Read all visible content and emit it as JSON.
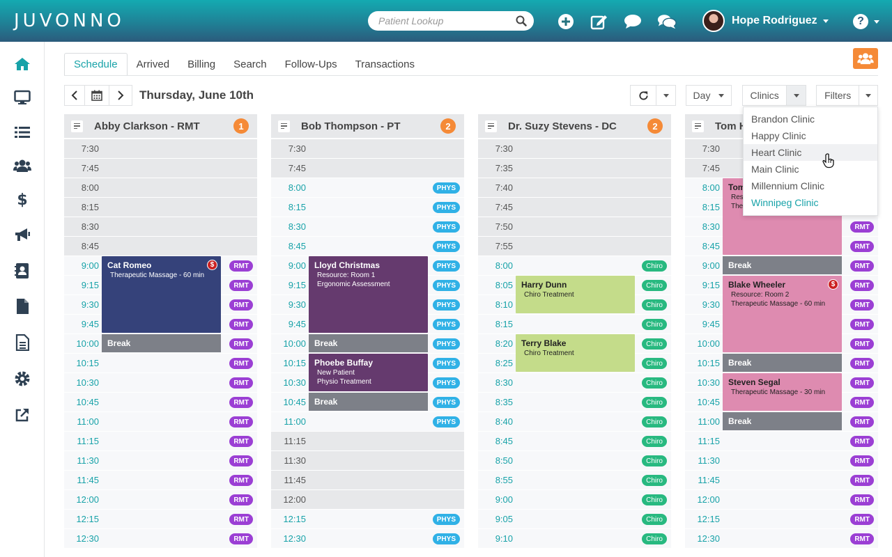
{
  "app": {
    "logo_text": "JUVONNO"
  },
  "header": {
    "search_placeholder": "Patient Lookup",
    "user_name": "Hope Rodriguez",
    "icons": [
      "plus-circle-icon",
      "edit-icon",
      "comment-icon",
      "comments-icon",
      "help-icon"
    ]
  },
  "sidebar": {
    "items": [
      {
        "icon": "home-icon",
        "active": true
      },
      {
        "icon": "monitor-icon"
      },
      {
        "icon": "list-icon"
      },
      {
        "icon": "users-icon"
      },
      {
        "icon": "dollar-icon"
      },
      {
        "icon": "megaphone-icon"
      },
      {
        "icon": "contact-card-icon"
      },
      {
        "icon": "file-icon"
      },
      {
        "icon": "document-icon"
      },
      {
        "icon": "gear-icon"
      },
      {
        "icon": "external-link-icon"
      }
    ]
  },
  "tabs": [
    "Schedule",
    "Arrived",
    "Billing",
    "Search",
    "Follow-Ups",
    "Transactions"
  ],
  "toolbar": {
    "date": "Thursday, June 10th",
    "view": "Day",
    "clinics_label": "Clinics",
    "filters_label": "Filters"
  },
  "clinics_dropdown": {
    "items": [
      "Brandon Clinic",
      "Happy Clinic",
      "Heart Clinic",
      "Main Clinic",
      "Millennium Clinic",
      "Winnipeg Clinic"
    ],
    "hovered": "Heart Clinic",
    "selected": "Winnipeg Clinic"
  },
  "colors": {
    "accent": "#17a2a8",
    "rmt": "#9b3fd4",
    "phys": "#30b1e6",
    "chiro": "#28b980",
    "badge": "#f58a37",
    "break": "#7d8088"
  },
  "columns": [
    {
      "name": "Abby Clarkson - RMT",
      "count": "1",
      "tag": "RMT",
      "slots": [
        {
          "t": "7:30",
          "open": false
        },
        {
          "t": "7:45",
          "open": false
        },
        {
          "t": "8:00",
          "open": false
        },
        {
          "t": "8:15",
          "open": false
        },
        {
          "t": "8:30",
          "open": false
        },
        {
          "t": "8:45",
          "open": false
        },
        {
          "t": "9:00",
          "open": true
        },
        {
          "t": "9:15",
          "open": true
        },
        {
          "t": "9:30",
          "open": true
        },
        {
          "t": "9:45",
          "open": true
        },
        {
          "t": "10:00",
          "open": true
        },
        {
          "t": "10:15",
          "open": true
        },
        {
          "t": "10:30",
          "open": true
        },
        {
          "t": "10:45",
          "open": true
        },
        {
          "t": "11:00",
          "open": true
        },
        {
          "t": "11:15",
          "open": true
        },
        {
          "t": "11:30",
          "open": true
        },
        {
          "t": "11:45",
          "open": true
        },
        {
          "t": "12:00",
          "open": true
        },
        {
          "t": "12:15",
          "open": true
        },
        {
          "t": "12:30",
          "open": true
        }
      ],
      "appointments": [
        {
          "name": "Cat Romeo",
          "lines": [
            "Therapeutic Massage - 60 min"
          ],
          "start": 6,
          "span": 4,
          "color": "#35427a",
          "dollar": true
        },
        {
          "name": "Break",
          "break": true,
          "start": 10,
          "span": 1
        }
      ]
    },
    {
      "name": "Bob Thompson - PT",
      "count": "2",
      "tag": "PHYS",
      "slots": [
        {
          "t": "7:30",
          "open": false
        },
        {
          "t": "7:45",
          "open": false
        },
        {
          "t": "8:00",
          "open": true
        },
        {
          "t": "8:15",
          "open": true
        },
        {
          "t": "8:30",
          "open": true
        },
        {
          "t": "8:45",
          "open": true
        },
        {
          "t": "9:00",
          "open": true
        },
        {
          "t": "9:15",
          "open": true
        },
        {
          "t": "9:30",
          "open": true
        },
        {
          "t": "9:45",
          "open": true
        },
        {
          "t": "10:00",
          "open": true
        },
        {
          "t": "10:15",
          "open": true
        },
        {
          "t": "10:30",
          "open": true
        },
        {
          "t": "10:45",
          "open": true
        },
        {
          "t": "11:00",
          "open": true
        },
        {
          "t": "11:15",
          "open": false
        },
        {
          "t": "11:30",
          "open": false
        },
        {
          "t": "11:45",
          "open": false
        },
        {
          "t": "12:00",
          "open": false
        },
        {
          "t": "12:15",
          "open": true
        },
        {
          "t": "12:30",
          "open": true
        }
      ],
      "appointments": [
        {
          "name": "Lloyd Christmas",
          "lines": [
            "Resource: Room 1",
            "Ergonomic Assessment"
          ],
          "start": 6,
          "span": 4,
          "color": "#653a6e"
        },
        {
          "name": "Break",
          "break": true,
          "start": 10,
          "span": 1
        },
        {
          "name": "Phoebe Buffay",
          "lines": [
            "New Patient",
            "Physio Treatment"
          ],
          "start": 11,
          "span": 2,
          "color": "#653a6e"
        },
        {
          "name": "Break",
          "break": true,
          "start": 13,
          "span": 1
        }
      ]
    },
    {
      "name": "Dr. Suzy Stevens - DC",
      "count": "2",
      "tag": "Chiro",
      "slots": [
        {
          "t": "7:30",
          "open": false
        },
        {
          "t": "7:35",
          "open": false
        },
        {
          "t": "7:40",
          "open": false
        },
        {
          "t": "7:45",
          "open": false
        },
        {
          "t": "7:50",
          "open": false
        },
        {
          "t": "7:55",
          "open": false
        },
        {
          "t": "8:00",
          "open": true
        },
        {
          "t": "8:05",
          "open": true
        },
        {
          "t": "8:10",
          "open": true
        },
        {
          "t": "8:15",
          "open": true
        },
        {
          "t": "8:20",
          "open": true
        },
        {
          "t": "8:25",
          "open": true
        },
        {
          "t": "8:30",
          "open": true
        },
        {
          "t": "8:35",
          "open": true
        },
        {
          "t": "8:40",
          "open": true
        },
        {
          "t": "8:45",
          "open": true
        },
        {
          "t": "8:50",
          "open": true
        },
        {
          "t": "8:55",
          "open": true
        },
        {
          "t": "9:00",
          "open": true
        },
        {
          "t": "9:05",
          "open": true
        },
        {
          "t": "9:10",
          "open": true
        }
      ],
      "appointments": [
        {
          "name": "Harry Dunn",
          "lines": [
            "Chiro Treatment"
          ],
          "start": 7,
          "span": 2,
          "color": "#c4dc8a",
          "dark": true
        },
        {
          "name": "Terry Blake",
          "lines": [
            "Chiro Treatment"
          ],
          "start": 10,
          "span": 2,
          "color": "#c4dc8a",
          "dark": true
        }
      ]
    },
    {
      "name": "Tom H",
      "count": "",
      "tag": "RMT",
      "slots": [
        {
          "t": "7:30",
          "open": false
        },
        {
          "t": "7:45",
          "open": false
        },
        {
          "t": "8:00",
          "open": true
        },
        {
          "t": "8:15",
          "open": true
        },
        {
          "t": "8:30",
          "open": true
        },
        {
          "t": "8:45",
          "open": true
        },
        {
          "t": "9:00",
          "open": true
        },
        {
          "t": "9:15",
          "open": true
        },
        {
          "t": "9:30",
          "open": true
        },
        {
          "t": "9:45",
          "open": true
        },
        {
          "t": "10:00",
          "open": true
        },
        {
          "t": "10:15",
          "open": true
        },
        {
          "t": "10:30",
          "open": true
        },
        {
          "t": "10:45",
          "open": true
        },
        {
          "t": "11:00",
          "open": true
        },
        {
          "t": "11:15",
          "open": true
        },
        {
          "t": "11:30",
          "open": true
        },
        {
          "t": "11:45",
          "open": true
        },
        {
          "t": "12:00",
          "open": true
        },
        {
          "t": "12:15",
          "open": true
        },
        {
          "t": "12:30",
          "open": true
        }
      ],
      "appointments": [
        {
          "name": "Tom",
          "lines": [
            "Res",
            "The"
          ],
          "start": 2,
          "span": 4,
          "color": "#de8bb0",
          "dark": true
        },
        {
          "name": "Break",
          "break": true,
          "start": 6,
          "span": 1
        },
        {
          "name": "Blake Wheeler",
          "lines": [
            "Resource: Room 2",
            "Therapeutic Massage - 60 min"
          ],
          "start": 7,
          "span": 4,
          "color": "#de8bb0",
          "dark": true,
          "dollar": true
        },
        {
          "name": "Break",
          "break": true,
          "start": 11,
          "span": 1
        },
        {
          "name": "Steven Segal",
          "lines": [
            "Therapeutic Massage - 30 min"
          ],
          "start": 12,
          "span": 2,
          "color": "#de8bb0",
          "dark": true
        },
        {
          "name": "Break",
          "break": true,
          "start": 14,
          "span": 1
        }
      ]
    }
  ]
}
